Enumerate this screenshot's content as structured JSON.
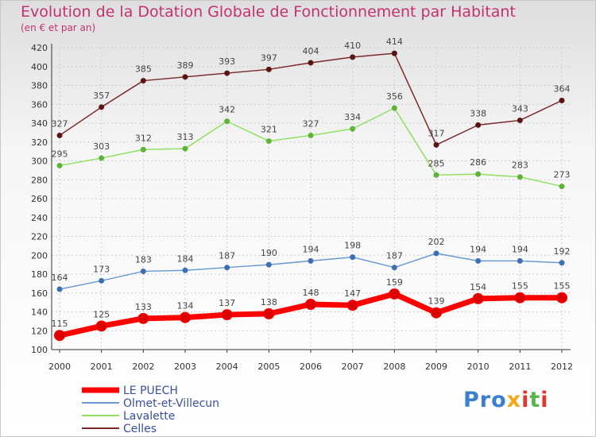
{
  "title": "Evolution de la Dotation Globale de Fonctionnement par Habitant",
  "subtitle": "(en € et par an)",
  "logo": "ProxiTi",
  "colors": {
    "title": "#c5306f",
    "grid": "#cccccc",
    "logo_p": "#3a7fd0",
    "logo_x": "#f2a81a",
    "logo_i": "#55b74a",
    "logo_t": "#e2372c"
  },
  "chart_data": {
    "type": "line",
    "x": [
      "2000",
      "2001",
      "2002",
      "2003",
      "2004",
      "2005",
      "2006",
      "2007",
      "2008",
      "2009",
      "2010",
      "2011",
      "2012"
    ],
    "ylim": [
      100,
      420
    ],
    "yticks": [
      100,
      120,
      140,
      160,
      180,
      200,
      220,
      240,
      260,
      280,
      300,
      320,
      340,
      360,
      380,
      400,
      420
    ],
    "grid": true,
    "legend_position": "bottom-left",
    "series": [
      {
        "name": "LE PUECH",
        "color": "#ff0000",
        "marker": "#dd0000",
        "width": 7,
        "values": [
          115,
          125,
          133,
          134,
          137,
          138,
          148,
          147,
          159,
          139,
          154,
          155,
          155
        ]
      },
      {
        "name": "Olmet-et-Villecun",
        "color": "#6c9bd2",
        "marker": "#3f6fb3",
        "width": 1.5,
        "values": [
          164,
          173,
          183,
          184,
          187,
          190,
          194,
          198,
          187,
          202,
          194,
          194,
          192
        ]
      },
      {
        "name": "Lavalette",
        "color": "#8fe060",
        "marker": "#5fb23a",
        "width": 1.5,
        "values": [
          295,
          303,
          312,
          313,
          342,
          321,
          327,
          334,
          356,
          285,
          286,
          283,
          273
        ]
      },
      {
        "name": "Celles",
        "color": "#7a2a2a",
        "marker": "#5a1414",
        "width": 1.5,
        "values": [
          327,
          357,
          385,
          389,
          393,
          397,
          404,
          410,
          414,
          317,
          338,
          343,
          364
        ]
      }
    ]
  }
}
